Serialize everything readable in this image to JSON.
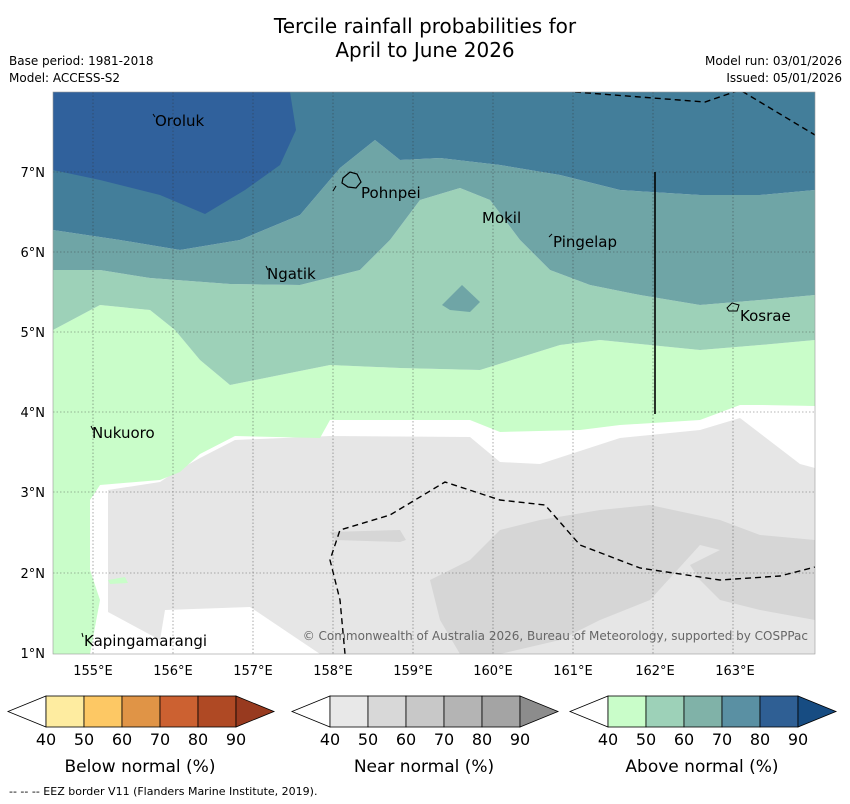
{
  "header": {
    "title_line1": "Tercile rainfall probabilities for",
    "title_line2": "April to June 2026",
    "base_period": "Base period: 1981-2018",
    "model": "Model: ACCESS-S2",
    "model_run": "Model run: 03/01/2026",
    "issued": "Issued: 05/01/2026"
  },
  "map": {
    "lon_labels": [
      "155°E",
      "156°E",
      "157°E",
      "158°E",
      "159°E",
      "160°E",
      "161°E",
      "162°E",
      "163°E"
    ],
    "lat_labels": [
      "7°N",
      "6°N",
      "5°N",
      "4°N",
      "3°N",
      "2°N",
      "1°N"
    ],
    "places": [
      "Oroluk",
      "Pohnpei",
      "Mokil",
      "Pingelap",
      "Ngatik",
      "Kosrae",
      "Nukuoro",
      "Kapingamarangi"
    ],
    "copyright": "© Commonwealth of Australia 2026, Bureau of Meteorology, supported by COSPPac"
  },
  "legend": {
    "ticks": [
      "40",
      "50",
      "60",
      "70",
      "80",
      "90"
    ],
    "below": {
      "label": "Below normal (%)",
      "colors": [
        "#ffffff",
        "#feeca0",
        "#fdc864",
        "#e09446",
        "#cc6131",
        "#af4924",
        "#983a1f"
      ]
    },
    "near": {
      "label": "Near normal (%)",
      "colors": [
        "#ffffff",
        "#e8e8e8",
        "#d8d8d8",
        "#c8c8c8",
        "#b4b4b4",
        "#a4a4a4",
        "#8c8c8c"
      ]
    },
    "above": {
      "label": "Above normal (%)",
      "colors": [
        "#ffffff",
        "#c9fdc9",
        "#9dd1b8",
        "#80b2a8",
        "#5a90a3",
        "#2f5f94",
        "#174c82"
      ]
    }
  },
  "footer": "--  --  -- EEZ border V11 (Flanders Marine Institute, 2019)."
}
